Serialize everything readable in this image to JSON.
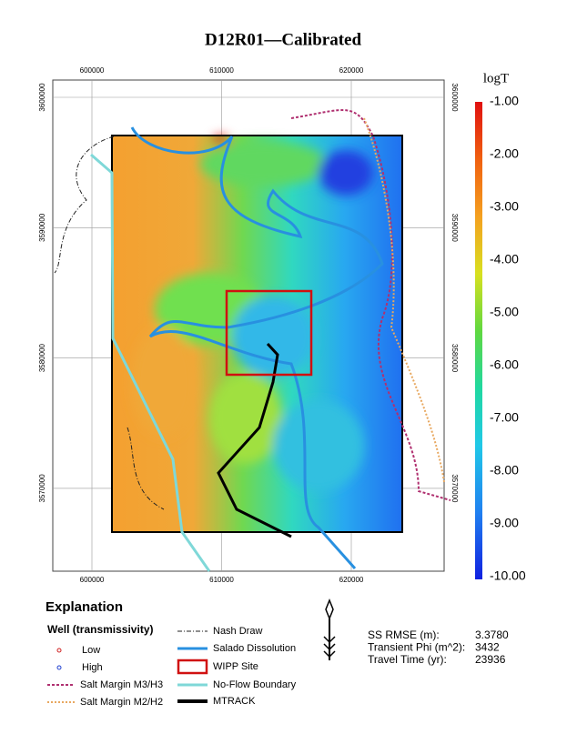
{
  "title": "D12R01—Calibrated",
  "map": {
    "x_ticks": [
      "600000",
      "610000",
      "620000"
    ],
    "y_ticks": [
      "3600000",
      "3590000",
      "3580000",
      "3570000"
    ]
  },
  "colorbar": {
    "title": "logT",
    "labels": [
      "-1.00",
      "-2.00",
      "-3.00",
      "-4.00",
      "-5.00",
      "-6.00",
      "-7.00",
      "-8.00",
      "-9.00",
      "-10.00"
    ]
  },
  "explanation": {
    "title": "Explanation",
    "well_title": "Well (transmissivity)",
    "left_items": [
      "Low",
      "High",
      "Salt Margin M3/H3",
      "Salt Margin M2/H2"
    ],
    "right_items": [
      "Nash Draw",
      "Salado Dissolution",
      "WIPP Site",
      "No-Flow Boundary",
      "MTRACK"
    ]
  },
  "stats": [
    [
      "SS RMSE (m):",
      "3.3780"
    ],
    [
      "Transient Phi (m^2):",
      "3432"
    ],
    [
      "Travel Time (yr):",
      "23936"
    ]
  ]
}
